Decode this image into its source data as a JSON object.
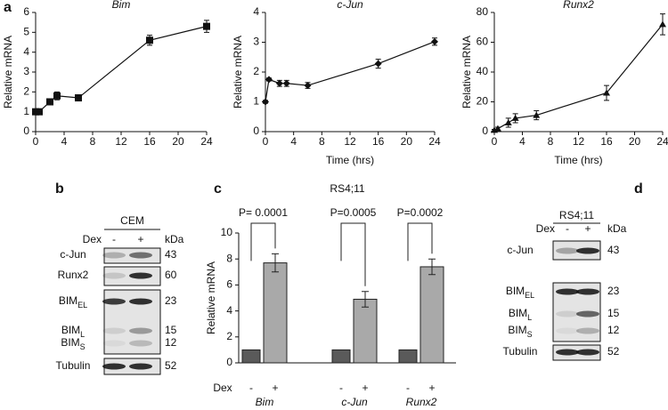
{
  "panel_labels": [
    "a",
    "b",
    "c",
    "d"
  ],
  "chart_data": [
    {
      "type": "line",
      "title": "Bim",
      "y_label": "Relative mRNA",
      "marker": "square",
      "color": "#111",
      "x": [
        0,
        0.5,
        2,
        3,
        6,
        16,
        24
      ],
      "values": [
        1,
        1,
        1.5,
        1.8,
        1.7,
        4.6,
        5.3
      ],
      "errors": [
        0.1,
        0.1,
        0.15,
        0.2,
        0.15,
        0.25,
        0.3
      ],
      "xlim": [
        0,
        24
      ],
      "xticks": [
        0,
        4,
        8,
        12,
        16,
        20,
        24
      ],
      "ylim": [
        0,
        6
      ],
      "yticks": [
        0,
        1,
        2,
        3,
        4,
        5,
        6
      ]
    },
    {
      "type": "line",
      "title": "c-Jun",
      "y_label": "Relative mRNA",
      "x_label": "Time (hrs)",
      "marker": "diamond",
      "color": "#111",
      "x": [
        0,
        0.5,
        2,
        3,
        6,
        16,
        24
      ],
      "values": [
        1,
        1.75,
        1.62,
        1.62,
        1.55,
        2.28,
        3.02
      ],
      "errors": [
        0.05,
        0.05,
        0.1,
        0.1,
        0.1,
        0.15,
        0.12
      ],
      "xlim": [
        0,
        24
      ],
      "xticks": [
        0,
        4,
        8,
        12,
        16,
        20,
        24
      ],
      "ylim": [
        0,
        4
      ],
      "yticks": [
        0,
        1,
        2,
        3,
        4
      ]
    },
    {
      "type": "line",
      "title": "Runx2",
      "y_label": "Relative mRNA",
      "x_label": "Time (hrs)",
      "marker": "triangle",
      "color": "#111",
      "x": [
        0,
        0.5,
        2,
        3,
        6,
        16,
        24
      ],
      "values": [
        1,
        2,
        6,
        9,
        11,
        26,
        72
      ],
      "errors": [
        0.5,
        1,
        3,
        3,
        3,
        5,
        7
      ],
      "xlim": [
        0,
        24
      ],
      "xticks": [
        0,
        4,
        8,
        12,
        16,
        20,
        24
      ],
      "ylim": [
        0,
        80
      ],
      "yticks": [
        0,
        20,
        40,
        60,
        80
      ]
    },
    {
      "type": "bar",
      "title": "RS4;11",
      "y_label": "Relative mRNA",
      "group_label": "Dex",
      "categories": [
        "Bim",
        "c-Jun",
        "Runx2"
      ],
      "series": [
        {
          "name": "-",
          "color": "#5a5a5a",
          "values": [
            1,
            1,
            1
          ]
        },
        {
          "name": "+",
          "color": "#a9a9a9",
          "values": [
            7.7,
            4.9,
            7.4
          ],
          "errors": [
            0.7,
            0.6,
            0.6
          ]
        }
      ],
      "annotations": [
        "P= 0.0001",
        "P=0.0005",
        "P=0.0002"
      ],
      "ylim": [
        0,
        10
      ],
      "yticks": [
        0,
        2,
        4,
        6,
        8,
        10
      ]
    }
  ],
  "blots": [
    {
      "title": "CEM",
      "treatment": "Dex",
      "lanes": [
        "-",
        "+"
      ],
      "unit": "kDa",
      "rows": [
        {
          "name": "c-Jun",
          "kda": 43
        },
        {
          "name": "Runx2",
          "kda": 60
        },
        {
          "name": "BIM",
          "sub": "EL",
          "kda": 23
        },
        {
          "name": "BIM",
          "sub": "L",
          "kda": 15
        },
        {
          "name": "BIM",
          "sub": "S",
          "kda": 12
        },
        {
          "name": "Tubulin",
          "kda": 52
        }
      ]
    },
    {
      "title": "RS4;11",
      "treatment": "Dex",
      "lanes": [
        "-",
        "+"
      ],
      "unit": "kDa",
      "rows": [
        {
          "name": "c-Jun",
          "kda": 43
        },
        {
          "name": "BIM",
          "sub": "EL",
          "kda": 23
        },
        {
          "name": "BIM",
          "sub": "L",
          "kda": 15
        },
        {
          "name": "BIM",
          "sub": "S",
          "kda": 12
        },
        {
          "name": "Tubulin",
          "kda": 52
        }
      ]
    }
  ]
}
